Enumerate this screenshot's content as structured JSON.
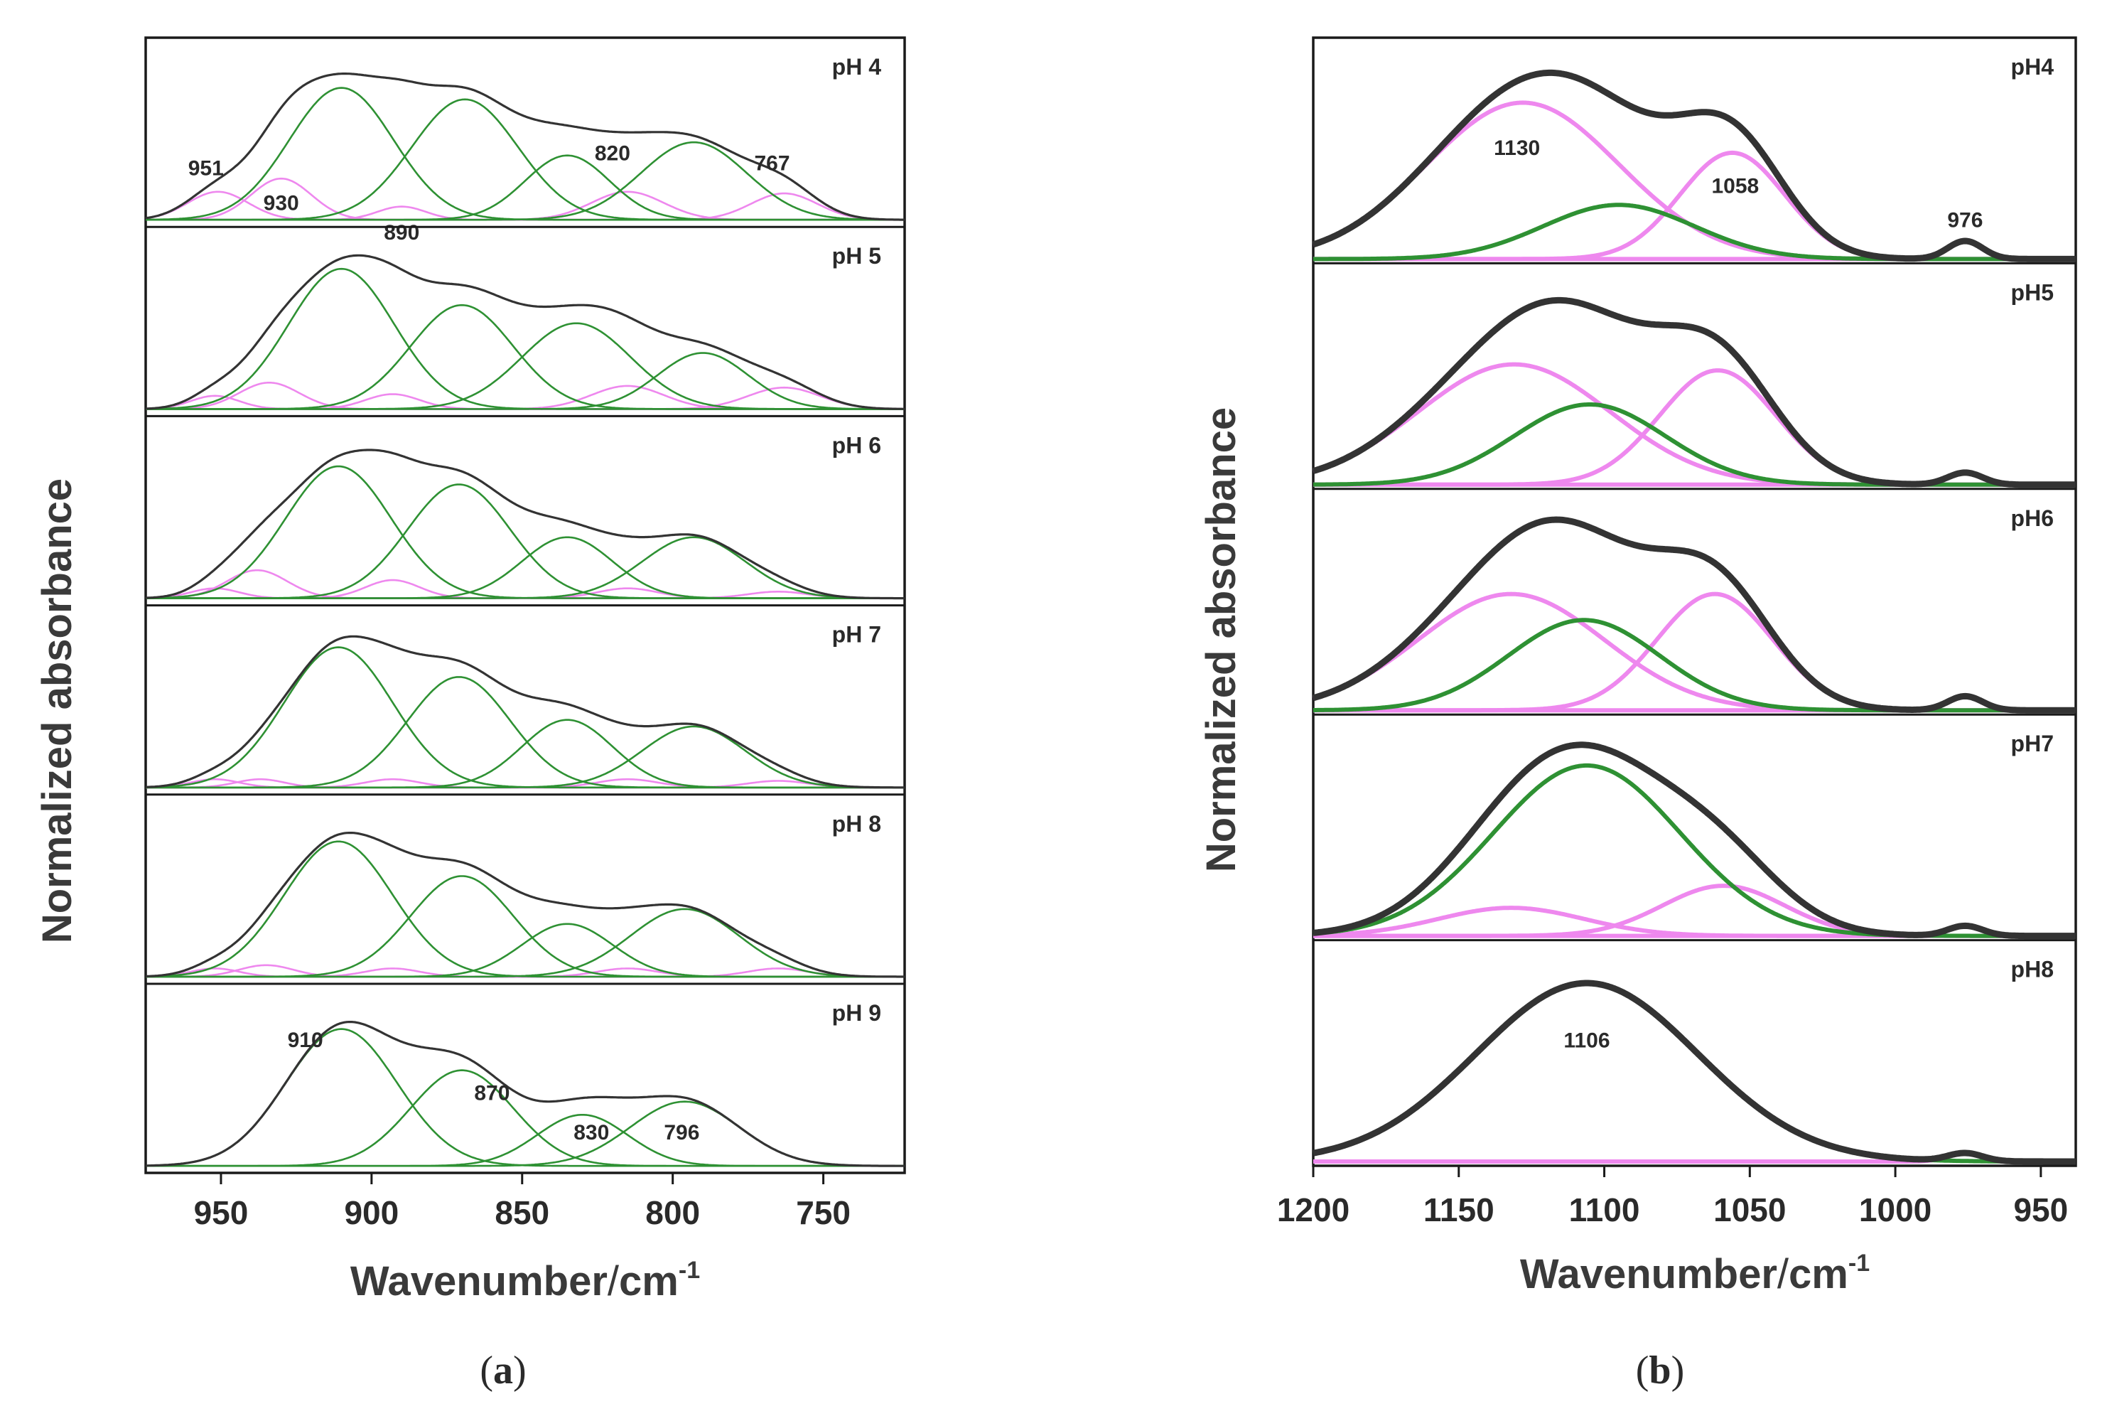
{
  "chart_data": [
    {
      "id": "a",
      "type": "line",
      "panel_label": "a",
      "xlabel": "Wavenumber/cm⁻¹",
      "xlabel_main": "Wavenumber",
      "xlabel_sep": "/",
      "xlabel_unit": "cm",
      "xlabel_exp": "-1",
      "ylabel": "Normalized absorbance",
      "xlim": [
        975,
        723
      ],
      "xticks": [
        950,
        900,
        850,
        800,
        750
      ],
      "colors": {
        "sum": "#333333",
        "primary": "#2e9133",
        "secondary": "#ee88ee"
      },
      "rows": [
        {
          "label": "pH 4",
          "green": [
            [
              910,
              0.8,
              17.3
            ],
            [
              869,
              0.73,
              17.6
            ],
            [
              835,
              0.39,
              14
            ],
            [
              793,
              0.47,
              17.5
            ]
          ],
          "pink": [
            [
              951,
              0.17,
              10
            ],
            [
              930,
              0.25,
              10
            ],
            [
              890,
              0.08,
              8
            ],
            [
              815,
              0.17,
              12
            ],
            [
              763,
              0.16,
              11
            ]
          ],
          "peak_labels": [
            {
              "text": "951",
              "x": 955,
              "y": 0.27
            },
            {
              "text": "930",
              "x": 930,
              "y": 0.06
            },
            {
              "text": "890",
              "x": 890,
              "y": -0.12
            },
            {
              "text": "820",
              "x": 820,
              "y": 0.36
            },
            {
              "text": "767",
              "x": 767,
              "y": 0.3
            }
          ]
        },
        {
          "label": "pH 5",
          "green": [
            [
              910,
              0.85,
              17.5
            ],
            [
              870,
              0.63,
              17
            ],
            [
              832,
              0.52,
              18
            ],
            [
              790,
              0.34,
              15
            ]
          ],
          "pink": [
            [
              952,
              0.08,
              8
            ],
            [
              934,
              0.16,
              10
            ],
            [
              893,
              0.09,
              9
            ],
            [
              815,
              0.14,
              12
            ],
            [
              763,
              0.13,
              12
            ]
          ],
          "peak_labels": []
        },
        {
          "label": "pH 6",
          "green": [
            [
              911,
              0.8,
              17.5
            ],
            [
              871,
              0.69,
              17
            ],
            [
              835,
              0.37,
              15
            ],
            [
              793,
              0.37,
              17
            ]
          ],
          "pink": [
            [
              952,
              0.06,
              8
            ],
            [
              938,
              0.17,
              10
            ],
            [
              893,
              0.11,
              9
            ],
            [
              815,
              0.06,
              10
            ],
            [
              765,
              0.04,
              10
            ]
          ],
          "peak_labels": []
        },
        {
          "label": "pH 7",
          "green": [
            [
              911,
              0.85,
              18
            ],
            [
              871,
              0.67,
              17
            ],
            [
              835,
              0.41,
              15
            ],
            [
              793,
              0.37,
              17
            ]
          ],
          "pink": [
            [
              952,
              0.05,
              8
            ],
            [
              937,
              0.05,
              8
            ],
            [
              893,
              0.05,
              9
            ],
            [
              815,
              0.05,
              10
            ],
            [
              765,
              0.04,
              10
            ]
          ],
          "peak_labels": []
        },
        {
          "label": "pH 8",
          "green": [
            [
              911,
              0.82,
              18
            ],
            [
              870,
              0.61,
              17
            ],
            [
              835,
              0.32,
              15
            ],
            [
              796,
              0.41,
              18
            ]
          ],
          "pink": [
            [
              952,
              0.05,
              8
            ],
            [
              935,
              0.07,
              9
            ],
            [
              893,
              0.05,
              9
            ],
            [
              815,
              0.05,
              10
            ],
            [
              765,
              0.05,
              10
            ]
          ],
          "peak_labels": []
        },
        {
          "label": "pH 9",
          "green": [
            [
              910,
              0.83,
              18.5
            ],
            [
              870,
              0.58,
              17
            ],
            [
              830,
              0.31,
              15
            ],
            [
              796,
              0.39,
              18
            ]
          ],
          "pink": [],
          "peak_labels": [
            {
              "text": "910",
              "x": 922,
              "y": 0.72
            },
            {
              "text": "870",
              "x": 860,
              "y": 0.4
            },
            {
              "text": "830",
              "x": 827,
              "y": 0.16
            },
            {
              "text": "796",
              "x": 797,
              "y": 0.16
            }
          ]
        }
      ]
    },
    {
      "id": "b",
      "type": "line",
      "panel_label": "b",
      "xlabel": "Wavenumber/cm⁻¹",
      "xlabel_main": "Wavenumber",
      "xlabel_sep": "/",
      "xlabel_unit": "cm",
      "xlabel_exp": "-1",
      "ylabel": "Normalized absorbance",
      "xlim": [
        1200,
        938
      ],
      "xticks": [
        1200,
        1150,
        1100,
        1050,
        1000,
        950
      ],
      "colors": {
        "sum": "#333333",
        "primary": "#2e9133",
        "secondary": "#ee88ee"
      },
      "rows": [
        {
          "label": "pH4",
          "green": [
            [
              1095,
              0.27,
              26
            ]
          ],
          "pink": [
            [
              1128,
              0.78,
              33
            ],
            [
              1056,
              0.53,
              18
            ],
            [
              976,
              0.09,
              6
            ]
          ],
          "peak_labels": [
            {
              "text": "1130",
              "x": 1130,
              "y": 0.52,
              "color": "dark"
            },
            {
              "text": "1058",
              "x": 1055,
              "y": 0.33,
              "color": "dark"
            },
            {
              "text": "976",
              "x": 976,
              "y": 0.16,
              "color": "dark"
            }
          ]
        },
        {
          "label": "pH5",
          "green": [
            [
              1105,
              0.4,
              26
            ]
          ],
          "pink": [
            [
              1131,
              0.6,
              33
            ],
            [
              1061,
              0.57,
              20
            ],
            [
              976,
              0.06,
              6
            ]
          ],
          "peak_labels": []
        },
        {
          "label": "pH6",
          "green": [
            [
              1107,
              0.45,
              26
            ]
          ],
          "pink": [
            [
              1132,
              0.58,
              32
            ],
            [
              1062,
              0.58,
              20
            ],
            [
              976,
              0.07,
              6
            ]
          ],
          "peak_labels": []
        },
        {
          "label": "pH7",
          "green": [
            [
              1106,
              0.85,
              32
            ]
          ],
          "pink": [
            [
              1132,
              0.14,
              25
            ],
            [
              1059,
              0.25,
              21
            ],
            [
              976,
              0.05,
              6
            ]
          ],
          "peak_labels": []
        },
        {
          "label": "pH8",
          "green": [
            [
              1106,
              0.89,
              38
            ]
          ],
          "pink": [
            [
              976,
              0.04,
              6
            ]
          ],
          "peak_labels": [
            {
              "text": "1106",
              "x": 1106,
              "y": 0.57,
              "color": "primary"
            }
          ]
        }
      ]
    }
  ]
}
